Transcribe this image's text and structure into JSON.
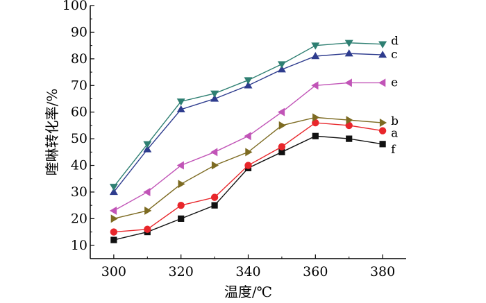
{
  "chart_data": {
    "type": "line",
    "xlabel": "温度/℃",
    "ylabel": "喹啉转化率/%",
    "xlim": [
      293,
      387
    ],
    "ylim": [
      5,
      100
    ],
    "x_ticks": [
      300,
      320,
      340,
      360,
      380
    ],
    "y_ticks": [
      10,
      20,
      30,
      40,
      50,
      60,
      70,
      80,
      90,
      100
    ],
    "x_tick_labels": [
      "300",
      "320",
      "340",
      "360",
      "380"
    ],
    "y_tick_labels": [
      "10",
      "20",
      "30",
      "40",
      "50",
      "60",
      "70",
      "80",
      "90",
      "100"
    ],
    "grid": false,
    "legend": "series labels at right end of lines",
    "x": [
      300,
      310,
      320,
      330,
      340,
      350,
      360,
      370,
      380
    ],
    "series": [
      {
        "name": "a",
        "marker": "circle",
        "color": "#e8262b",
        "values": [
          15,
          16,
          25,
          28,
          40,
          47,
          56,
          55,
          53
        ]
      },
      {
        "name": "b",
        "marker": "triangle-right",
        "color": "#7d6b22",
        "values": [
          20,
          23,
          33,
          40,
          45,
          55,
          58,
          57,
          56
        ]
      },
      {
        "name": "c",
        "marker": "triangle-up",
        "color": "#2e3c8e",
        "values": [
          30,
          46,
          61,
          65,
          70,
          76,
          81,
          82,
          81.5
        ]
      },
      {
        "name": "d",
        "marker": "triangle-down",
        "color": "#2e7f72",
        "values": [
          32,
          48,
          64,
          67,
          72,
          78,
          85,
          86,
          85.5
        ]
      },
      {
        "name": "e",
        "marker": "triangle-left",
        "color": "#c154b7",
        "values": [
          23,
          30,
          40,
          45,
          51,
          60,
          70,
          71,
          71
        ]
      },
      {
        "name": "f",
        "marker": "square",
        "color": "#111111",
        "values": [
          12,
          15,
          20,
          25,
          39,
          45,
          51,
          50,
          48
        ]
      }
    ]
  }
}
